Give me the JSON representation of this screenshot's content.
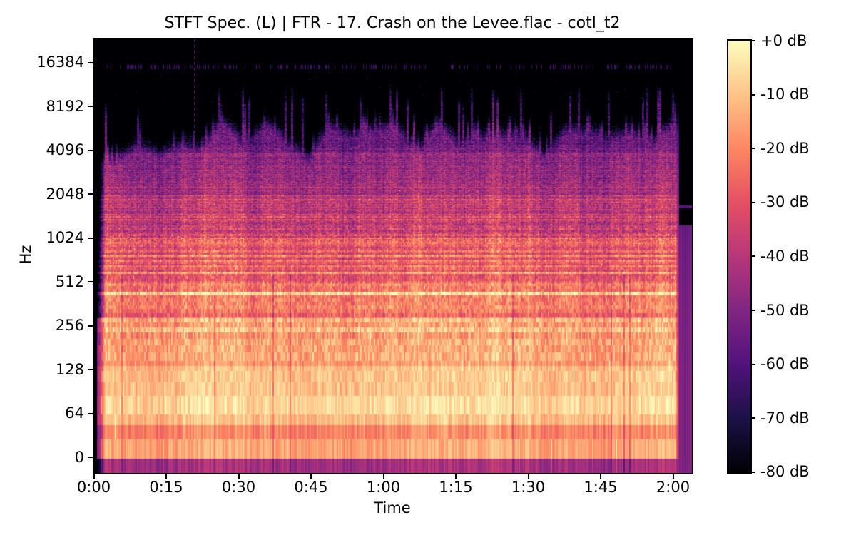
{
  "window": {
    "background": "#ffffff"
  },
  "chart_data": {
    "type": "heatmap",
    "subtype": "stft_spectrogram",
    "title": "STFT Spec. (L) | FTR - 17. Crash on the Levee.flac - cotl_t2",
    "xlabel": "Time",
    "ylabel": "Hz",
    "x_ticks": [
      "0:00",
      "0:15",
      "0:30",
      "0:45",
      "1:00",
      "1:15",
      "1:30",
      "1:45",
      "2:00"
    ],
    "x_tick_interval_seconds": 15,
    "duration_seconds": 124,
    "audio_end_seconds": 121,
    "y_ticks": [
      "16384",
      "8192",
      "4096",
      "2048",
      "1024",
      "512",
      "256",
      "128",
      "64",
      "0"
    ],
    "y_scale": "log2_octaves_evenly_spaced",
    "y_range_hz": [
      0,
      22050
    ],
    "grid": false,
    "legend": "colorbar-right",
    "colormap": "magma",
    "colormap_anchors_low_to_high": [
      "#000004",
      "#1c1147",
      "#51127c",
      "#812581",
      "#b73779",
      "#e55064",
      "#fc8761",
      "#fec488",
      "#fcfdbf"
    ],
    "colorbar_ticks": [
      "+0 dB",
      "-10 dB",
      "-20 dB",
      "-30 dB",
      "-40 dB",
      "-50 dB",
      "-60 dB",
      "-70 dB",
      "-80 dB"
    ],
    "db_range": [
      -80,
      0
    ],
    "band_profile_mean_db": [
      {
        "hz": "0-32",
        "db": -46
      },
      {
        "hz": "32-54",
        "db": -17
      },
      {
        "hz": "54-140",
        "db": -7.5
      },
      {
        "hz": "140-300",
        "db": -14
      },
      {
        "hz": "300-520",
        "db": -23
      },
      {
        "hz": "520-1050",
        "db": -30
      },
      {
        "hz": "1050-2100",
        "db": -38
      },
      {
        "hz": "2100-4200",
        "db": -46
      },
      {
        "hz": "4200-6700",
        "db": -52
      },
      {
        "hz": "6700-12000",
        "db": -62
      },
      {
        "hz": "12000-22050",
        "db": -78
      }
    ],
    "features": {
      "intro_silence_seconds": 2,
      "hf_energy_ceiling_hz": 5000,
      "hf_spike_max_hz": 11500,
      "sparse_noise_line_hz": 16300,
      "full_band_transient_at": "0:21",
      "outro_decay_after": "2:01"
    }
  }
}
